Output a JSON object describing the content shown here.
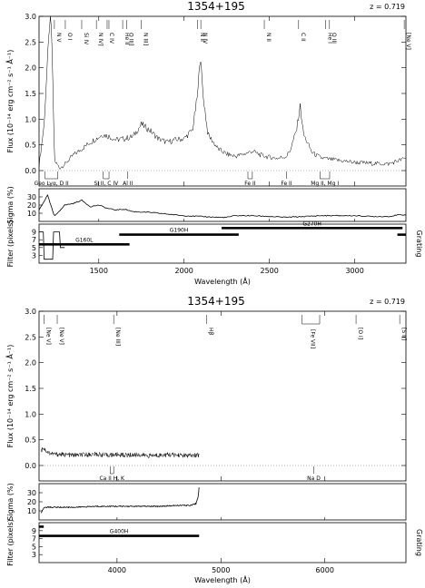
{
  "chart_data": [
    {
      "type": "line",
      "object": "1354+195",
      "redshift": "z = 0.719",
      "ylabel": "Flux (10⁻¹⁴ erg cm⁻² s⁻¹ Å⁻¹)",
      "sigma_label": "Sigma (%)",
      "filter_label": "Filter (pixels)",
      "grating_label": "Grating",
      "xlabel": "Wavelength (Å)",
      "xlim": [
        1150,
        3300
      ],
      "ylim": [
        -0.3,
        3.0
      ],
      "sigma_ylim": [
        0,
        40
      ],
      "filter_ylim": [
        1,
        11
      ],
      "x_ticks": [
        1500,
        2000,
        2500,
        3000
      ],
      "y_ticks": [
        0.0,
        0.5,
        1.0,
        1.5,
        2.0,
        2.5,
        3.0
      ],
      "sigma_ticks": [
        10,
        20,
        30
      ],
      "filter_ticks": [
        3,
        5,
        7,
        9
      ],
      "series": [
        {
          "x": [
            1150,
            1180,
            1200,
            1215,
            1225,
            1240,
            1270,
            1300,
            1350,
            1400,
            1450,
            1500,
            1520,
            1549,
            1600,
            1650,
            1700,
            1750,
            1800,
            1850,
            1900,
            1950,
            2000,
            2050,
            2080,
            2095,
            2110,
            2140,
            2200,
            2250,
            2300,
            2350,
            2400,
            2450,
            2500,
            2550,
            2600,
            2620,
            2660,
            2680,
            2700,
            2750,
            2800,
            2850,
            2900,
            3000,
            3100,
            3200,
            3260,
            3300
          ],
          "values": [
            0.1,
            0.9,
            2.2,
            3.0,
            2.6,
            0.2,
            0.05,
            0.12,
            0.3,
            0.42,
            0.55,
            0.65,
            0.7,
            0.68,
            0.6,
            0.62,
            0.66,
            0.9,
            0.78,
            0.62,
            0.55,
            0.6,
            0.62,
            0.8,
            1.5,
            2.28,
            1.5,
            0.7,
            0.42,
            0.32,
            0.28,
            0.32,
            0.38,
            0.3,
            0.26,
            0.24,
            0.28,
            0.38,
            0.8,
            1.27,
            0.7,
            0.35,
            0.25,
            0.22,
            0.2,
            0.16,
            0.14,
            0.13,
            0.2,
            0.24
          ]
        }
      ],
      "sigma_series": {
        "x": [
          1150,
          1200,
          1240,
          1300,
          1350,
          1400,
          1450,
          1500,
          1550,
          1600,
          1650,
          1700,
          1800,
          1900,
          2000,
          2100,
          2200,
          2250,
          2300,
          2400,
          2500,
          2600,
          2700,
          2800,
          2900,
          3000,
          3100,
          3200,
          3260,
          3300
        ],
        "values": [
          14,
          32,
          6,
          20,
          22,
          26,
          18,
          20,
          16,
          14,
          15,
          12,
          11,
          9,
          7,
          6,
          5,
          5,
          7,
          7,
          6,
          5,
          6,
          7,
          7,
          7,
          6,
          6,
          8,
          8
        ]
      },
      "filter_widths": [
        {
          "x": [
            1150,
            1175,
            1180,
            1230,
            1235,
            1270,
            1275,
            1300
          ],
          "values": [
            9,
            9,
            2,
            2,
            9,
            9,
            5,
            5
          ]
        }
      ],
      "line_ids_top": [
        {
          "x": 1240,
          "label": "N V",
          "tick": "single"
        },
        {
          "x": 1304,
          "label": "O I",
          "tick": "single"
        },
        {
          "x": 1400,
          "label": "Si IV",
          "tick": "single"
        },
        {
          "x": 1486,
          "label": "N IV]",
          "tick": "single"
        },
        {
          "x": 1549,
          "label": "C IV",
          "tick": "double"
        },
        {
          "x": 1640,
          "label": "He II",
          "tick": "single"
        },
        {
          "x": 1663,
          "label": "O III]",
          "tick": "single"
        },
        {
          "x": 1750,
          "label": "N III]",
          "tick": "single"
        },
        {
          "x": 2080,
          "label": "N II",
          "tick": "single"
        },
        {
          "x": 2098,
          "label": "N IV",
          "tick": "single"
        },
        {
          "x": 2470,
          "label": "N II",
          "tick": "single"
        },
        {
          "x": 2671,
          "label": "C II",
          "tick": "single"
        },
        {
          "x": 2830,
          "label": "He I",
          "tick": "single"
        },
        {
          "x": 2852,
          "label": "O III",
          "tick": "single"
        },
        {
          "x": 3290,
          "label": "[Ne V]",
          "tick": "single"
        }
      ],
      "line_ids_bottom": [
        {
          "x": 1185,
          "x2": 1260,
          "label": "Geo Lyα, D II"
        },
        {
          "x": 1526,
          "x2": 1560,
          "label": "Si II, C IV"
        },
        {
          "x": 1670,
          "label": "Al II"
        },
        {
          "x": 2374,
          "x2": 2400,
          "label": "Fe II"
        },
        {
          "x": 2600,
          "label": "Fe II"
        },
        {
          "x": 2796,
          "x2": 2853,
          "label": "Mg II, Mg I"
        }
      ],
      "gratings": [
        {
          "name": "G160L",
          "x0": 1150,
          "x1": 1680
        },
        {
          "name": "G190H",
          "x0": 1620,
          "x1": 2320
        },
        {
          "name": "G270H",
          "x0": 2220,
          "x1": 3280
        },
        {
          "name": "",
          "x0": 3250,
          "x1": 3300
        }
      ]
    },
    {
      "type": "line",
      "object": "1354+195",
      "redshift": "z = 0.719",
      "ylabel": "Flux (10⁻¹⁴ erg cm⁻² s⁻¹ Å⁻¹)",
      "sigma_label": "Sigma (%)",
      "filter_label": "Filter (pixels)",
      "grating_label": "Grating",
      "xlabel": "Wavelength (Å)",
      "xlim": [
        3250,
        6780
      ],
      "ylim": [
        -0.3,
        3.0
      ],
      "sigma_ylim": [
        0,
        40
      ],
      "filter_ylim": [
        1,
        11
      ],
      "x_ticks": [
        4000,
        5000,
        6000
      ],
      "y_ticks": [
        0.0,
        0.5,
        1.0,
        1.5,
        2.0,
        2.5,
        3.0
      ],
      "sigma_ticks": [
        10,
        20,
        30
      ],
      "filter_ticks": [
        3,
        5,
        7,
        9
      ],
      "series": [
        {
          "x": [
            3270,
            3290,
            3310,
            3340,
            3400,
            3500,
            3600,
            3700,
            3800,
            3900,
            4000,
            4100,
            4200,
            4300,
            4400,
            4500,
            4600,
            4700,
            4790
          ],
          "values": [
            0.28,
            0.36,
            0.3,
            0.25,
            0.22,
            0.21,
            0.2,
            0.21,
            0.22,
            0.2,
            0.21,
            0.2,
            0.21,
            0.19,
            0.2,
            0.21,
            0.2,
            0.19,
            0.2
          ]
        }
      ],
      "sigma_series": {
        "x": [
          3270,
          3300,
          3400,
          3500,
          3600,
          3800,
          4000,
          4200,
          4400,
          4600,
          4700,
          4760,
          4780,
          4790
        ],
        "values": [
          8,
          14,
          14,
          14,
          14,
          15,
          15,
          15,
          15,
          16,
          16,
          18,
          25,
          36
        ]
      },
      "filter_widths": [
        {
          "x": [
            3250,
            3290
          ],
          "values": [
            10,
            10
          ]
        }
      ],
      "line_ids_top": [
        {
          "x": 3300,
          "label": "[Ne V]",
          "tick": "single"
        },
        {
          "x": 3425,
          "label": "[Ne V]",
          "tick": "single"
        },
        {
          "x": 3968,
          "label": "[Ne III]",
          "tick": "single"
        },
        {
          "x": 4861,
          "label": "Hβ",
          "tick": "single"
        },
        {
          "x": 5780,
          "label": "[Fe VII]",
          "tick": "bracket",
          "x2": 5950
        },
        {
          "x": 6300,
          "label": "[O I]",
          "tick": "single"
        },
        {
          "x": 6720,
          "label": "[S II]",
          "tick": "single"
        }
      ],
      "line_ids_bottom": [
        {
          "x": 3934,
          "x2": 3968,
          "label": "Ca II H, K"
        },
        {
          "x": 5893,
          "label": "Na D"
        }
      ],
      "gratings": [
        {
          "name": "G400H",
          "x0": 3250,
          "x1": 4790
        },
        {
          "name": "",
          "x0": 3250,
          "x1": 3295
        }
      ]
    }
  ]
}
